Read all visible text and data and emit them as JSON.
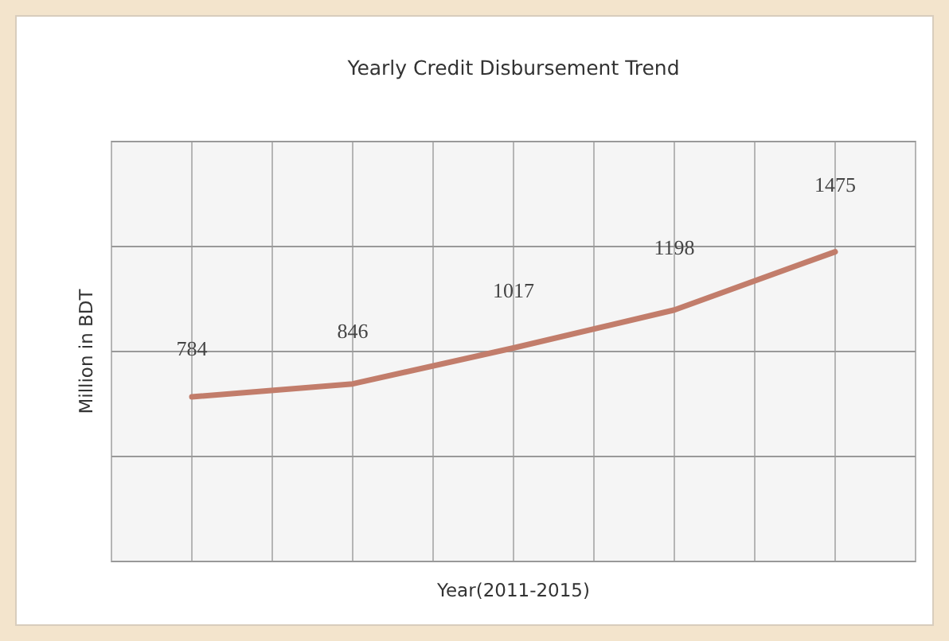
{
  "chart_data": {
    "type": "line",
    "title": "Yearly Credit Disbursement Trend",
    "xlabel": "Year(2011-2015)",
    "ylabel": "Million in BDT",
    "categories": [
      null,
      null,
      null,
      null,
      null
    ],
    "series": [
      {
        "color": "#c27d6b",
        "values": [
          784,
          846,
          1017,
          1198,
          1475
        ]
      }
    ],
    "ylim": [
      0,
      2000
    ],
    "yticks": [
      {
        "value": 0,
        "label": null
      },
      {
        "value": 500,
        "label": null
      },
      {
        "value": 1000,
        "label": null
      },
      {
        "value": 1500,
        "label": null
      },
      {
        "value": 2000,
        "label": null
      }
    ],
    "grid": true,
    "data_labels": true,
    "marker": "none",
    "line_style": "solid"
  }
}
